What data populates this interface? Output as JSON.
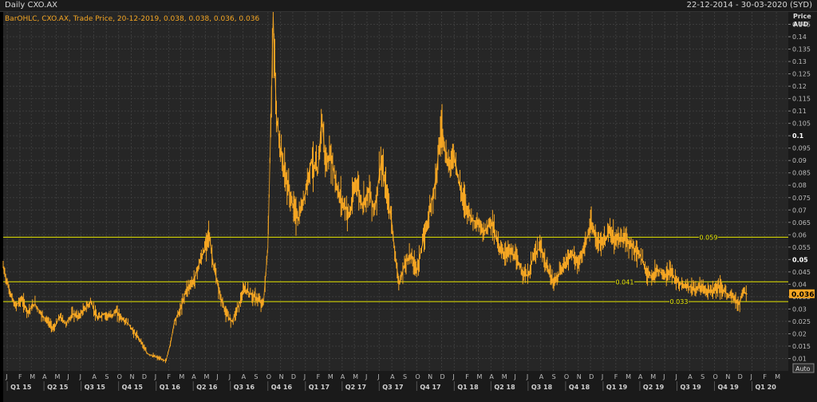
{
  "window": {
    "title": "Daily CXO.AX",
    "date_range": "22-12-2014 - 30-03-2020 (SYD)"
  },
  "legend": {
    "text": "BarOHLC, CXO.AX, Trade Price, 20-12-2019, 0.038, 0.038, 0.036, 0.036"
  },
  "axis": {
    "price_label": "Price",
    "currency_label": "AUD",
    "auto_button": "Auto",
    "last_price_tag": "0.036"
  },
  "colors": {
    "background": "#262626",
    "grid": "#3c3c3c",
    "series": "#f5a623",
    "hlines": "#e6e600",
    "last_tag": "#f5a623"
  },
  "chart_data": {
    "type": "line",
    "series_style": "ohlc-bar",
    "ylim": [
      0.005,
      0.15
    ],
    "y_ticks": [
      "0.01",
      "0.015",
      "0.02",
      "0.025",
      "0.03",
      "0.035",
      "0.04",
      "0.045",
      "0.05",
      "0.055",
      "0.06",
      "0.065",
      "0.07",
      "0.075",
      "0.08",
      "0.085",
      "0.09",
      "0.095",
      "0.1",
      "0.105",
      "0.11",
      "0.115",
      "0.12",
      "0.125",
      "0.13",
      "0.135",
      "0.14",
      "0.145"
    ],
    "y_ticks_bold": [
      "0.05",
      "0.1"
    ],
    "month_labels": [
      "J",
      "F",
      "M",
      "A",
      "M",
      "J",
      "J",
      "A",
      "S",
      "O",
      "N",
      "D",
      "J",
      "F",
      "M",
      "A",
      "M",
      "J",
      "J",
      "A",
      "S",
      "O",
      "N",
      "D",
      "J",
      "F",
      "M",
      "A",
      "M",
      "J",
      "J",
      "A",
      "S",
      "O",
      "N",
      "D",
      "J",
      "F",
      "M",
      "A",
      "M",
      "J",
      "J",
      "A",
      "S",
      "O",
      "N",
      "D",
      "J",
      "F",
      "M",
      "A",
      "M",
      "J",
      "J",
      "A",
      "S",
      "O",
      "N",
      "D",
      "J",
      "F",
      "M"
    ],
    "quarter_labels": [
      "Q1 15",
      "Q2 15",
      "Q3 15",
      "Q4 15",
      "Q1 16",
      "Q2 16",
      "Q3 16",
      "Q4 16",
      "Q1 17",
      "Q2 17",
      "Q3 17",
      "Q4 17",
      "Q1 18",
      "Q2 18",
      "Q3 18",
      "Q4 18",
      "Q1 19",
      "Q2 19",
      "Q3 19",
      "Q4 19",
      "Q1 20"
    ],
    "horizontal_lines": [
      {
        "label": "0.059",
        "value": 0.059
      },
      {
        "label": "0.041",
        "value": 0.041
      },
      {
        "label": "0.033",
        "value": 0.033
      }
    ],
    "last_value": 0.036,
    "points": [
      [
        "2014-12-22",
        0.047
      ],
      [
        "2015-01-05",
        0.038
      ],
      [
        "2015-01-20",
        0.031
      ],
      [
        "2015-02-05",
        0.034
      ],
      [
        "2015-02-20",
        0.029
      ],
      [
        "2015-03-10",
        0.032
      ],
      [
        "2015-03-25",
        0.028
      ],
      [
        "2015-04-10",
        0.025
      ],
      [
        "2015-04-25",
        0.022
      ],
      [
        "2015-05-10",
        0.027
      ],
      [
        "2015-05-25",
        0.024
      ],
      [
        "2015-06-10",
        0.028
      ],
      [
        "2015-06-25",
        0.027
      ],
      [
        "2015-07-10",
        0.03
      ],
      [
        "2015-07-25",
        0.033
      ],
      [
        "2015-08-10",
        0.026
      ],
      [
        "2015-08-25",
        0.028
      ],
      [
        "2015-09-10",
        0.027
      ],
      [
        "2015-09-25",
        0.029
      ],
      [
        "2015-10-10",
        0.026
      ],
      [
        "2015-10-25",
        0.024
      ],
      [
        "2015-11-10",
        0.02
      ],
      [
        "2015-11-25",
        0.017
      ],
      [
        "2015-12-10",
        0.012
      ],
      [
        "2015-12-25",
        0.011
      ],
      [
        "2016-01-10",
        0.01
      ],
      [
        "2016-01-25",
        0.009
      ],
      [
        "2016-02-05",
        0.016
      ],
      [
        "2016-02-15",
        0.025
      ],
      [
        "2016-03-01",
        0.03
      ],
      [
        "2016-03-15",
        0.038
      ],
      [
        "2016-04-01",
        0.041
      ],
      [
        "2016-04-15",
        0.048
      ],
      [
        "2016-05-01",
        0.055
      ],
      [
        "2016-05-08",
        0.062
      ],
      [
        "2016-05-20",
        0.048
      ],
      [
        "2016-06-05",
        0.036
      ],
      [
        "2016-06-20",
        0.028
      ],
      [
        "2016-07-05",
        0.025
      ],
      [
        "2016-07-20",
        0.031
      ],
      [
        "2016-08-05",
        0.038
      ],
      [
        "2016-08-20",
        0.036
      ],
      [
        "2016-09-05",
        0.034
      ],
      [
        "2016-09-20",
        0.032
      ],
      [
        "2016-10-01",
        0.055
      ],
      [
        "2016-10-08",
        0.103
      ],
      [
        "2016-10-14",
        0.148
      ],
      [
        "2016-10-22",
        0.108
      ],
      [
        "2016-11-01",
        0.094
      ],
      [
        "2016-11-15",
        0.082
      ],
      [
        "2016-12-01",
        0.072
      ],
      [
        "2016-12-15",
        0.066
      ],
      [
        "2017-01-01",
        0.077
      ],
      [
        "2017-01-15",
        0.09
      ],
      [
        "2017-02-01",
        0.085
      ],
      [
        "2017-02-10",
        0.108
      ],
      [
        "2017-02-20",
        0.088
      ],
      [
        "2017-03-05",
        0.092
      ],
      [
        "2017-03-20",
        0.078
      ],
      [
        "2017-04-05",
        0.072
      ],
      [
        "2017-04-20",
        0.068
      ],
      [
        "2017-05-05",
        0.082
      ],
      [
        "2017-05-20",
        0.072
      ],
      [
        "2017-06-05",
        0.078
      ],
      [
        "2017-06-20",
        0.07
      ],
      [
        "2017-07-05",
        0.089
      ],
      [
        "2017-07-20",
        0.076
      ],
      [
        "2017-08-01",
        0.065
      ],
      [
        "2017-08-10",
        0.05
      ],
      [
        "2017-08-20",
        0.04
      ],
      [
        "2017-09-01",
        0.048
      ],
      [
        "2017-09-15",
        0.052
      ],
      [
        "2017-10-01",
        0.046
      ],
      [
        "2017-10-15",
        0.056
      ],
      [
        "2017-11-01",
        0.069
      ],
      [
        "2017-11-15",
        0.081
      ],
      [
        "2017-12-01",
        0.104
      ],
      [
        "2017-12-15",
        0.088
      ],
      [
        "2018-01-01",
        0.092
      ],
      [
        "2018-01-15",
        0.079
      ],
      [
        "2018-02-01",
        0.071
      ],
      [
        "2018-02-15",
        0.066
      ],
      [
        "2018-03-01",
        0.064
      ],
      [
        "2018-03-15",
        0.061
      ],
      [
        "2018-04-01",
        0.066
      ],
      [
        "2018-04-15",
        0.058
      ],
      [
        "2018-05-01",
        0.052
      ],
      [
        "2018-05-15",
        0.054
      ],
      [
        "2018-06-01",
        0.05
      ],
      [
        "2018-06-15",
        0.046
      ],
      [
        "2018-07-01",
        0.043
      ],
      [
        "2018-07-15",
        0.052
      ],
      [
        "2018-08-01",
        0.055
      ],
      [
        "2018-08-15",
        0.047
      ],
      [
        "2018-09-01",
        0.041
      ],
      [
        "2018-09-15",
        0.044
      ],
      [
        "2018-10-01",
        0.049
      ],
      [
        "2018-10-15",
        0.053
      ],
      [
        "2018-11-01",
        0.048
      ],
      [
        "2018-11-15",
        0.054
      ],
      [
        "2018-12-01",
        0.064
      ],
      [
        "2018-12-15",
        0.058
      ],
      [
        "2019-01-01",
        0.056
      ],
      [
        "2019-01-15",
        0.061
      ],
      [
        "2019-02-01",
        0.058
      ],
      [
        "2019-02-15",
        0.059
      ],
      [
        "2019-03-01",
        0.057
      ],
      [
        "2019-03-15",
        0.055
      ],
      [
        "2019-04-01",
        0.052
      ],
      [
        "2019-04-15",
        0.046
      ],
      [
        "2019-05-01",
        0.043
      ],
      [
        "2019-05-15",
        0.046
      ],
      [
        "2019-06-01",
        0.043
      ],
      [
        "2019-06-15",
        0.045
      ],
      [
        "2019-07-01",
        0.041
      ],
      [
        "2019-07-15",
        0.04
      ],
      [
        "2019-08-01",
        0.039
      ],
      [
        "2019-08-15",
        0.038
      ],
      [
        "2019-09-01",
        0.039
      ],
      [
        "2019-09-15",
        0.037
      ],
      [
        "2019-10-01",
        0.038
      ],
      [
        "2019-10-15",
        0.039
      ],
      [
        "2019-11-01",
        0.036
      ],
      [
        "2019-11-15",
        0.035
      ],
      [
        "2019-12-01",
        0.032
      ],
      [
        "2019-12-10",
        0.037
      ],
      [
        "2019-12-20",
        0.036
      ]
    ]
  }
}
